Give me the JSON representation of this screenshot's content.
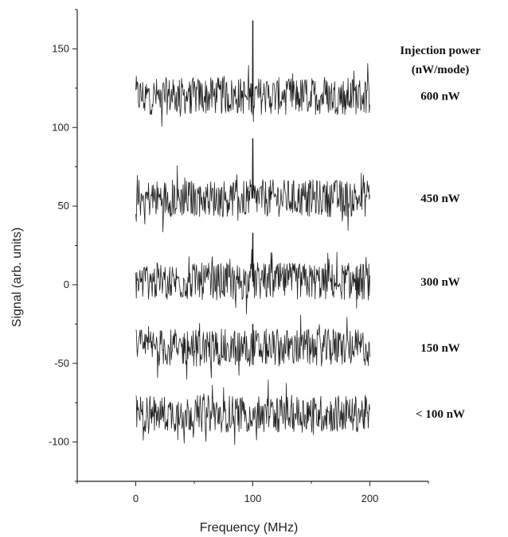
{
  "chart_data": {
    "type": "line",
    "xlabel": "Frequency (MHz)",
    "ylabel": "Signal (arb. units)",
    "xlim": [
      -50,
      250
    ],
    "ylim": [
      -125,
      175
    ],
    "x_ticks": [
      0,
      100,
      200
    ],
    "y_ticks": [
      -100,
      -50,
      0,
      50,
      100,
      150
    ],
    "grid": false,
    "legend_title": [
      "Injection power",
      "(nW/mode)"
    ],
    "x_range": [
      0,
      200
    ],
    "series": [
      {
        "name": "600 nW",
        "baseline": 120,
        "noise_amplitude": 12,
        "peak_x": 100,
        "peak_y": 168
      },
      {
        "name": "450 nW",
        "baseline": 55,
        "noise_amplitude": 12,
        "peak_x": 100,
        "peak_y": 93
      },
      {
        "name": "300 nW",
        "baseline": 2,
        "noise_amplitude": 12,
        "peak_x": 100,
        "peak_y": 33
      },
      {
        "name": "150 nW",
        "baseline": -40,
        "noise_amplitude": 12,
        "peak_x": 100,
        "peak_y": -25
      },
      {
        "name": "< 100 nW",
        "baseline": -82,
        "noise_amplitude": 12,
        "peak_x": null,
        "peak_y": null
      }
    ]
  }
}
